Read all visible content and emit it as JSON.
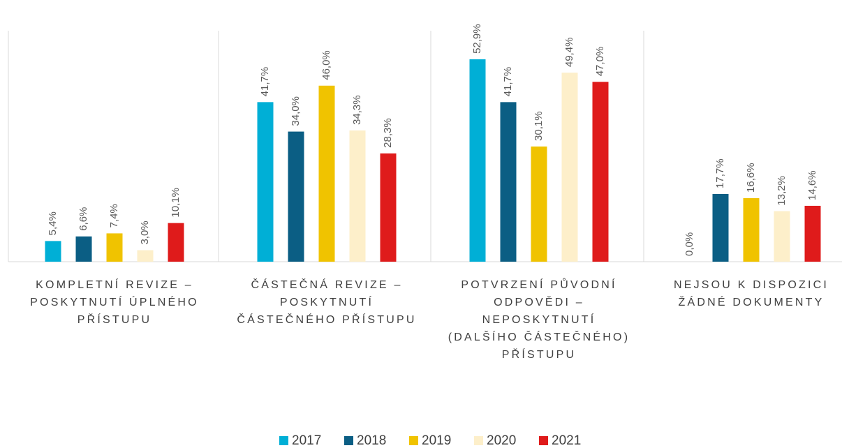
{
  "chart_data": {
    "type": "bar",
    "categories": [
      "KOMPLETNÍ REVIZE –\nPOSKYTNUTÍ ÚPLNÉHO\nPŘÍSTUPU",
      "ČÁSTEČNÁ REVIZE –\nPOSKYTNUTÍ\nČÁSTEČNÉHO PŘÍSTUPU",
      "POTVRZENÍ PŮVODNÍ\nODPOVĚDI –\nNEPOSKYTNUTÍ\n(DALŠÍHO ČÁSTEČNÉHO)\nPŘÍSTUPU",
      "NEJSOU K DISPOZICI\nŽÁDNÉ DOKUMENTY"
    ],
    "series": [
      {
        "name": "2017",
        "color": "#00afd6",
        "values": [
          5.4,
          41.7,
          52.9,
          0.0
        ],
        "value_labels": [
          "5,4%",
          "41,7%",
          "52,9%",
          "0,0%"
        ]
      },
      {
        "name": "2018",
        "color": "#0b5e84",
        "values": [
          6.6,
          34.0,
          41.7,
          17.7
        ],
        "value_labels": [
          "6,6%",
          "34,0%",
          "41,7%",
          "17,7%"
        ]
      },
      {
        "name": "2019",
        "color": "#f0c300",
        "values": [
          7.4,
          46.0,
          30.1,
          16.6
        ],
        "value_labels": [
          "7,4%",
          "46,0%",
          "30,1%",
          "16,6%"
        ]
      },
      {
        "name": "2020",
        "color": "#fdefca",
        "values": [
          3.0,
          34.3,
          49.4,
          13.2
        ],
        "value_labels": [
          "3,0%",
          "34,3%",
          "49,4%",
          "13,2%"
        ]
      },
      {
        "name": "2021",
        "color": "#df1b1b",
        "values": [
          10.1,
          28.3,
          47.0,
          14.6
        ],
        "value_labels": [
          "10,1%",
          "28,3%",
          "47,0%",
          "14,6%"
        ]
      }
    ],
    "ylim": [
      0,
      60
    ],
    "legend": "bottom"
  }
}
